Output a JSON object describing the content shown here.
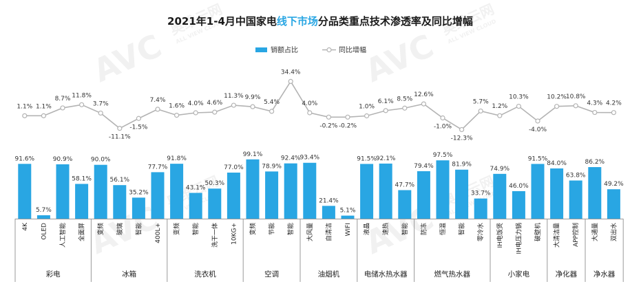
{
  "title": {
    "part1": "2021年1-4月中国家电",
    "part2": "线下市场",
    "part3": "分品类重点技术渗透率及同比增幅"
  },
  "watermark": {
    "logo": "AVC",
    "cn": "奥维云网",
    "en": "ALL VIEW CLOUD"
  },
  "colors": {
    "bar": "#29a6e3",
    "line": "#b3b3b3",
    "highlight": "#29a6e3"
  },
  "chart_data": {
    "type": "bar",
    "title": "2021年1-4月中国家电线下市场分品类重点技术渗透率及同比增幅",
    "legend_position": "top",
    "categories": [
      "4K",
      "OLED",
      "人工智能",
      "全面屏",
      "变频",
      "玻璃",
      "智能",
      "400L+",
      "变频",
      "智能",
      "洗干一体",
      "10KG+",
      "变频",
      "节能",
      "智能",
      "大风量",
      "自清洁",
      "WIFI",
      "液晶",
      "速热",
      "智能",
      "防冻",
      "恒温",
      "智能",
      "零冷水",
      "IH电饭煲",
      "IH电压力锅",
      "破壁机",
      "大清洁量",
      "APP控制",
      "大通量",
      "双出水"
    ],
    "groups": [
      {
        "name": "彩电",
        "count": 4
      },
      {
        "name": "冰箱",
        "count": 4
      },
      {
        "name": "洗衣机",
        "count": 4
      },
      {
        "name": "空调",
        "count": 3
      },
      {
        "name": "油烟机",
        "count": 3
      },
      {
        "name": "电储水热水器",
        "count": 3
      },
      {
        "name": "燃气热水器",
        "count": 4
      },
      {
        "name": "小家电",
        "count": 3
      },
      {
        "name": "净化器",
        "count": 2
      },
      {
        "name": "净水器",
        "count": 2
      }
    ],
    "series": [
      {
        "name": "销额占比",
        "type": "bar",
        "values": [
          91.6,
          5.7,
          90.9,
          58.1,
          90.0,
          56.1,
          35.2,
          77.7,
          91.8,
          43.1,
          50.3,
          77.0,
          99.1,
          78.9,
          92.4,
          93.4,
          21.4,
          5.1,
          91.5,
          92.1,
          47.7,
          79.4,
          97.5,
          81.9,
          33.7,
          74.9,
          46.0,
          91.5,
          84.0,
          63.8,
          86.2,
          49.2
        ]
      },
      {
        "name": "同比增幅",
        "type": "line",
        "values": [
          1.1,
          1.1,
          8.7,
          11.8,
          3.7,
          -11.1,
          -1.5,
          7.4,
          1.6,
          4.0,
          4.6,
          11.3,
          9.9,
          5.4,
          34.4,
          4.0,
          -0.2,
          -0.2,
          1.0,
          6.1,
          8.5,
          12.6,
          -1.0,
          -12.3,
          5.7,
          1.2,
          10.3,
          -4.0,
          10.2,
          10.8,
          4.3,
          4.2
        ]
      }
    ],
    "unit": "%"
  }
}
